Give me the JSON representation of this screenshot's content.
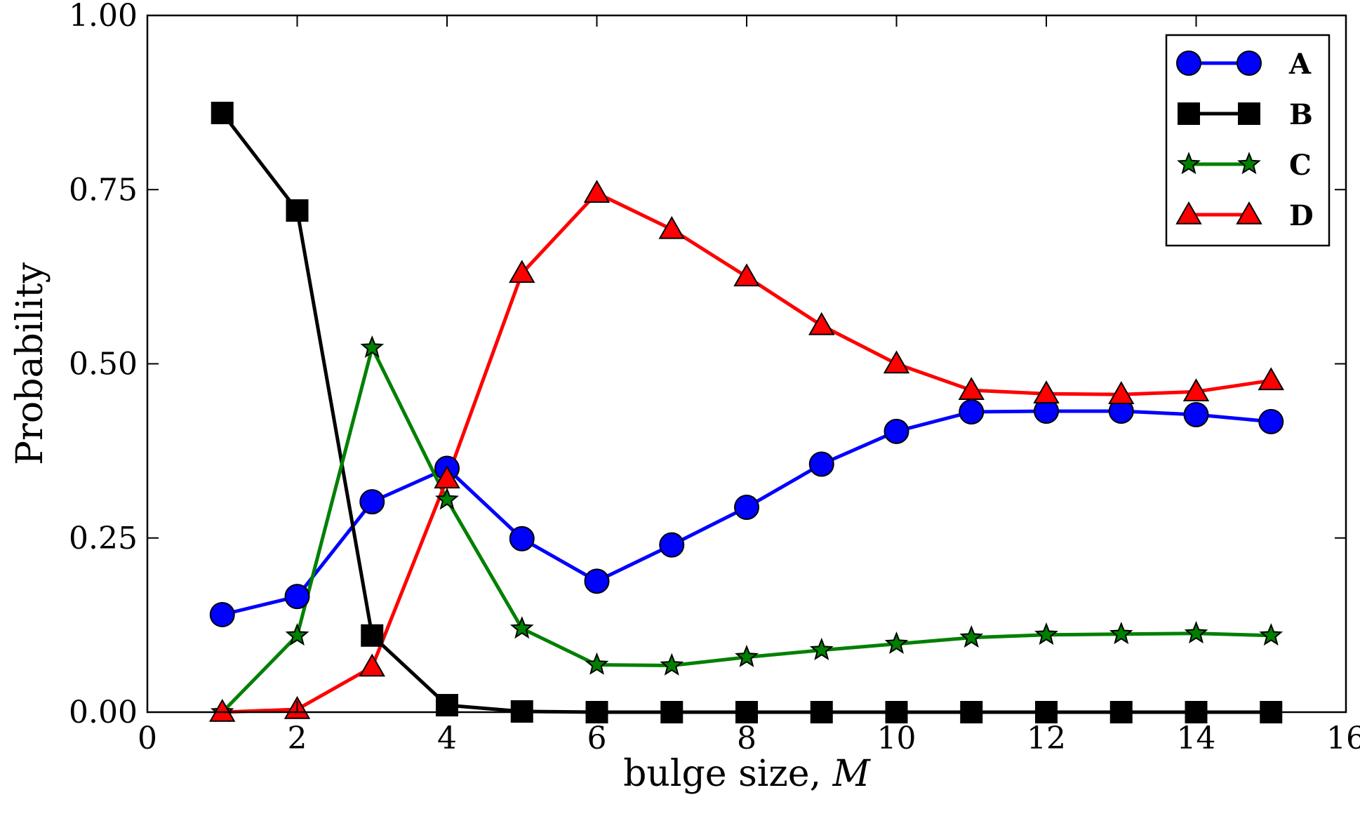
{
  "chart_data": {
    "type": "line",
    "title": "",
    "xlabel_main": "bulge size, ",
    "xlabel_var": "M",
    "ylabel": "Probability",
    "xlim": [
      0,
      16
    ],
    "ylim": [
      0,
      1
    ],
    "xticks": [
      0,
      2,
      4,
      6,
      8,
      10,
      12,
      14,
      16
    ],
    "xtick_labels": [
      "0",
      "2",
      "4",
      "6",
      "8",
      "10",
      "12",
      "14",
      "16"
    ],
    "yticks": [
      0,
      0.25,
      0.5,
      0.75,
      1.0
    ],
    "ytick_labels": [
      "0.00",
      "0.25",
      "0.50",
      "0.75",
      "1.00"
    ],
    "legend_position": "top-right",
    "x": [
      1,
      2,
      3,
      4,
      5,
      6,
      7,
      8,
      9,
      10,
      11,
      12,
      13,
      14,
      15
    ],
    "series": [
      {
        "name": "A",
        "color": "#0000ff",
        "marker": "circle",
        "values": [
          0.14,
          0.166,
          0.302,
          0.35,
          0.249,
          0.188,
          0.24,
          0.294,
          0.356,
          0.403,
          0.431,
          0.432,
          0.432,
          0.427,
          0.417
        ]
      },
      {
        "name": "B",
        "color": "#000000",
        "marker": "square",
        "values": [
          0.86,
          0.72,
          0.11,
          0.01,
          0.001,
          0.0,
          0.0,
          0.0,
          0.0,
          0.0,
          0.0,
          0.0,
          0.0,
          0.0,
          0.0
        ]
      },
      {
        "name": "C",
        "color": "#008000",
        "marker": "star",
        "values": [
          0.0,
          0.11,
          0.523,
          0.305,
          0.12,
          0.068,
          0.067,
          0.079,
          0.089,
          0.098,
          0.107,
          0.111,
          0.112,
          0.113,
          0.11
        ]
      },
      {
        "name": "D",
        "color": "#ff0000",
        "marker": "triangle",
        "values": [
          0.0,
          0.004,
          0.065,
          0.335,
          0.63,
          0.745,
          0.693,
          0.625,
          0.555,
          0.5,
          0.462,
          0.457,
          0.456,
          0.46,
          0.476
        ]
      }
    ]
  }
}
